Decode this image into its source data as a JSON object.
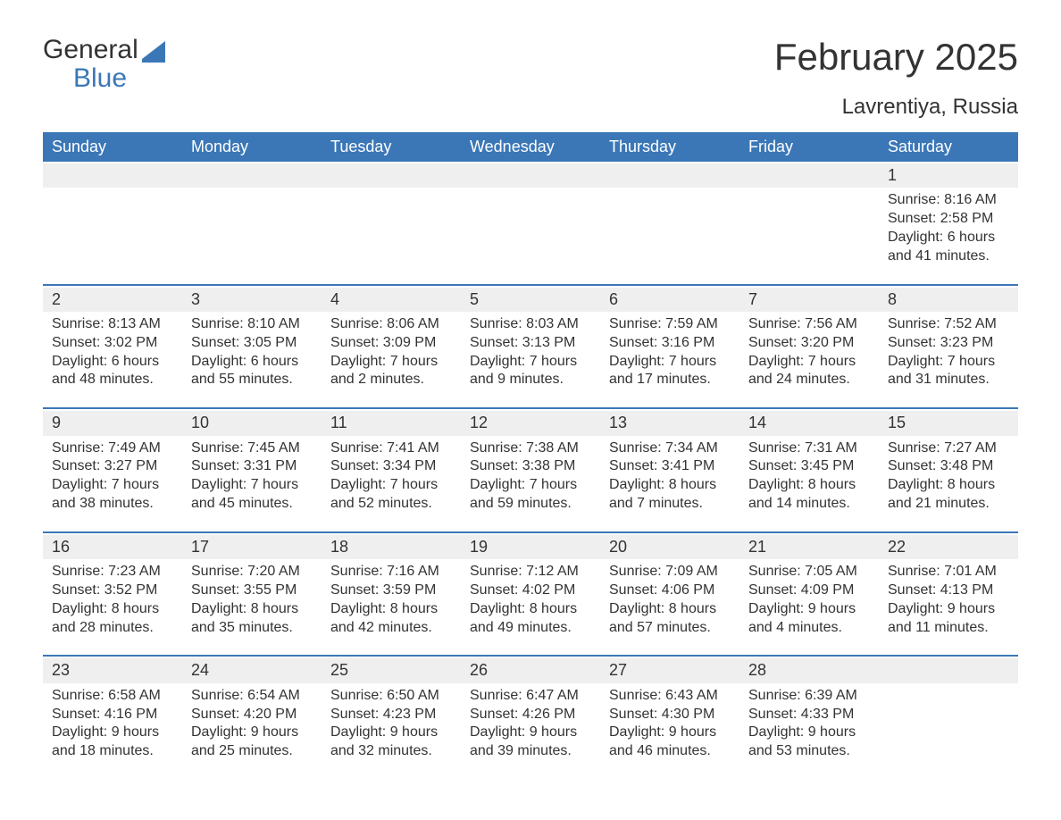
{
  "brand": {
    "word1": "General",
    "word2": "Blue",
    "accent_color": "#3b77b7"
  },
  "title": "February 2025",
  "location": "Lavrentiya, Russia",
  "styling": {
    "header_bg": "#3b77b7",
    "header_text_color": "#ffffff",
    "daynum_bg": "#efefef",
    "body_text_color": "#333333",
    "rule_color": "#3b77b7",
    "background_color": "#ffffff",
    "title_fontsize_pt": 32,
    "location_fontsize_pt": 18,
    "header_fontsize_pt": 14,
    "cell_fontsize_pt": 12,
    "columns": 7,
    "rows": 5
  },
  "day_names": [
    "Sunday",
    "Monday",
    "Tuesday",
    "Wednesday",
    "Thursday",
    "Friday",
    "Saturday"
  ],
  "weeks": [
    [
      null,
      null,
      null,
      null,
      null,
      null,
      {
        "n": "1",
        "sunrise": "Sunrise: 8:16 AM",
        "sunset": "Sunset: 2:58 PM",
        "day1": "Daylight: 6 hours",
        "day2": "and 41 minutes."
      }
    ],
    [
      {
        "n": "2",
        "sunrise": "Sunrise: 8:13 AM",
        "sunset": "Sunset: 3:02 PM",
        "day1": "Daylight: 6 hours",
        "day2": "and 48 minutes."
      },
      {
        "n": "3",
        "sunrise": "Sunrise: 8:10 AM",
        "sunset": "Sunset: 3:05 PM",
        "day1": "Daylight: 6 hours",
        "day2": "and 55 minutes."
      },
      {
        "n": "4",
        "sunrise": "Sunrise: 8:06 AM",
        "sunset": "Sunset: 3:09 PM",
        "day1": "Daylight: 7 hours",
        "day2": "and 2 minutes."
      },
      {
        "n": "5",
        "sunrise": "Sunrise: 8:03 AM",
        "sunset": "Sunset: 3:13 PM",
        "day1": "Daylight: 7 hours",
        "day2": "and 9 minutes."
      },
      {
        "n": "6",
        "sunrise": "Sunrise: 7:59 AM",
        "sunset": "Sunset: 3:16 PM",
        "day1": "Daylight: 7 hours",
        "day2": "and 17 minutes."
      },
      {
        "n": "7",
        "sunrise": "Sunrise: 7:56 AM",
        "sunset": "Sunset: 3:20 PM",
        "day1": "Daylight: 7 hours",
        "day2": "and 24 minutes."
      },
      {
        "n": "8",
        "sunrise": "Sunrise: 7:52 AM",
        "sunset": "Sunset: 3:23 PM",
        "day1": "Daylight: 7 hours",
        "day2": "and 31 minutes."
      }
    ],
    [
      {
        "n": "9",
        "sunrise": "Sunrise: 7:49 AM",
        "sunset": "Sunset: 3:27 PM",
        "day1": "Daylight: 7 hours",
        "day2": "and 38 minutes."
      },
      {
        "n": "10",
        "sunrise": "Sunrise: 7:45 AM",
        "sunset": "Sunset: 3:31 PM",
        "day1": "Daylight: 7 hours",
        "day2": "and 45 minutes."
      },
      {
        "n": "11",
        "sunrise": "Sunrise: 7:41 AM",
        "sunset": "Sunset: 3:34 PM",
        "day1": "Daylight: 7 hours",
        "day2": "and 52 minutes."
      },
      {
        "n": "12",
        "sunrise": "Sunrise: 7:38 AM",
        "sunset": "Sunset: 3:38 PM",
        "day1": "Daylight: 7 hours",
        "day2": "and 59 minutes."
      },
      {
        "n": "13",
        "sunrise": "Sunrise: 7:34 AM",
        "sunset": "Sunset: 3:41 PM",
        "day1": "Daylight: 8 hours",
        "day2": "and 7 minutes."
      },
      {
        "n": "14",
        "sunrise": "Sunrise: 7:31 AM",
        "sunset": "Sunset: 3:45 PM",
        "day1": "Daylight: 8 hours",
        "day2": "and 14 minutes."
      },
      {
        "n": "15",
        "sunrise": "Sunrise: 7:27 AM",
        "sunset": "Sunset: 3:48 PM",
        "day1": "Daylight: 8 hours",
        "day2": "and 21 minutes."
      }
    ],
    [
      {
        "n": "16",
        "sunrise": "Sunrise: 7:23 AM",
        "sunset": "Sunset: 3:52 PM",
        "day1": "Daylight: 8 hours",
        "day2": "and 28 minutes."
      },
      {
        "n": "17",
        "sunrise": "Sunrise: 7:20 AM",
        "sunset": "Sunset: 3:55 PM",
        "day1": "Daylight: 8 hours",
        "day2": "and 35 minutes."
      },
      {
        "n": "18",
        "sunrise": "Sunrise: 7:16 AM",
        "sunset": "Sunset: 3:59 PM",
        "day1": "Daylight: 8 hours",
        "day2": "and 42 minutes."
      },
      {
        "n": "19",
        "sunrise": "Sunrise: 7:12 AM",
        "sunset": "Sunset: 4:02 PM",
        "day1": "Daylight: 8 hours",
        "day2": "and 49 minutes."
      },
      {
        "n": "20",
        "sunrise": "Sunrise: 7:09 AM",
        "sunset": "Sunset: 4:06 PM",
        "day1": "Daylight: 8 hours",
        "day2": "and 57 minutes."
      },
      {
        "n": "21",
        "sunrise": "Sunrise: 7:05 AM",
        "sunset": "Sunset: 4:09 PM",
        "day1": "Daylight: 9 hours",
        "day2": "and 4 minutes."
      },
      {
        "n": "22",
        "sunrise": "Sunrise: 7:01 AM",
        "sunset": "Sunset: 4:13 PM",
        "day1": "Daylight: 9 hours",
        "day2": "and 11 minutes."
      }
    ],
    [
      {
        "n": "23",
        "sunrise": "Sunrise: 6:58 AM",
        "sunset": "Sunset: 4:16 PM",
        "day1": "Daylight: 9 hours",
        "day2": "and 18 minutes."
      },
      {
        "n": "24",
        "sunrise": "Sunrise: 6:54 AM",
        "sunset": "Sunset: 4:20 PM",
        "day1": "Daylight: 9 hours",
        "day2": "and 25 minutes."
      },
      {
        "n": "25",
        "sunrise": "Sunrise: 6:50 AM",
        "sunset": "Sunset: 4:23 PM",
        "day1": "Daylight: 9 hours",
        "day2": "and 32 minutes."
      },
      {
        "n": "26",
        "sunrise": "Sunrise: 6:47 AM",
        "sunset": "Sunset: 4:26 PM",
        "day1": "Daylight: 9 hours",
        "day2": "and 39 minutes."
      },
      {
        "n": "27",
        "sunrise": "Sunrise: 6:43 AM",
        "sunset": "Sunset: 4:30 PM",
        "day1": "Daylight: 9 hours",
        "day2": "and 46 minutes."
      },
      {
        "n": "28",
        "sunrise": "Sunrise: 6:39 AM",
        "sunset": "Sunset: 4:33 PM",
        "day1": "Daylight: 9 hours",
        "day2": "and 53 minutes."
      },
      null
    ]
  ]
}
